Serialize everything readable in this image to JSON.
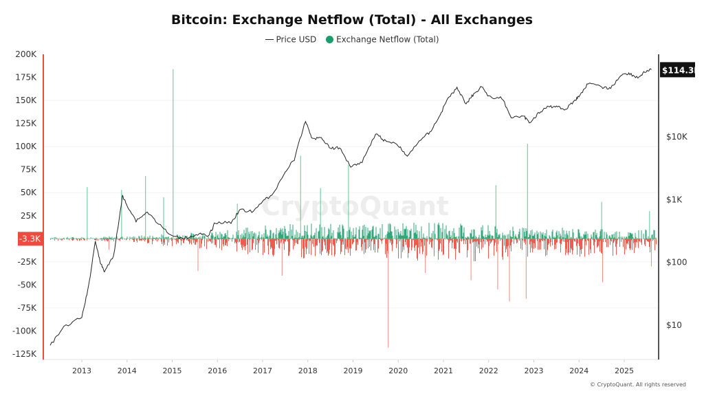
{
  "chart_data": {
    "type": "bar+line",
    "title": "Bitcoin: Exchange Netflow (Total) - All Exchanges",
    "legend": [
      {
        "name": "Price USD",
        "color": "#222222"
      },
      {
        "name": "Exchange Netflow (Total)",
        "color": "#1a9c6b"
      }
    ],
    "legend_placement": "top-center",
    "watermark": "CryptoQuant",
    "footer": "© CryptoQuant. All rights reserved",
    "colors": {
      "inflow": "#1a9c6b",
      "outflow": "#ee4b3c",
      "price": "#222222",
      "current_value_bg": "#ee4b3c"
    },
    "x_ticks": [
      "2013",
      "2014",
      "2015",
      "2016",
      "2017",
      "2018",
      "2019",
      "2020",
      "2021",
      "2022",
      "2023",
      "2024",
      "2025"
    ],
    "x_range": [
      2012.3,
      2025.7
    ],
    "left_axis": {
      "ticks": [
        "200K",
        "175K",
        "150K",
        "125K",
        "100K",
        "75K",
        "50K",
        "25K",
        "-25K",
        "-50K",
        "-75K",
        "-100K",
        "-125K"
      ],
      "range": [
        -125000,
        200000
      ],
      "current_label": "-3.3K"
    },
    "right_axis": {
      "scale": "log",
      "ticks": [
        "$10K",
        "$1K",
        "$100",
        "$10"
      ],
      "tick_values": [
        10000,
        1000,
        100,
        10
      ],
      "range": [
        3,
        250000
      ],
      "current_label": "$114.3K"
    },
    "price_series": [
      [
        2012.3,
        4.6
      ],
      [
        2012.6,
        9
      ],
      [
        2013.0,
        13
      ],
      [
        2013.15,
        40
      ],
      [
        2013.3,
        218
      ],
      [
        2013.4,
        100
      ],
      [
        2013.5,
        70
      ],
      [
        2013.7,
        120
      ],
      [
        2013.9,
        1100
      ],
      [
        2014.0,
        800
      ],
      [
        2014.2,
        450
      ],
      [
        2014.45,
        620
      ],
      [
        2014.7,
        400
      ],
      [
        2015.0,
        250
      ],
      [
        2015.3,
        240
      ],
      [
        2015.6,
        280
      ],
      [
        2015.8,
        250
      ],
      [
        2015.95,
        420
      ],
      [
        2016.3,
        420
      ],
      [
        2016.5,
        670
      ],
      [
        2016.8,
        620
      ],
      [
        2017.0,
        950
      ],
      [
        2017.2,
        1100
      ],
      [
        2017.5,
        2700
      ],
      [
        2017.7,
        4300
      ],
      [
        2017.95,
        17500
      ],
      [
        2018.1,
        9000
      ],
      [
        2018.3,
        9500
      ],
      [
        2018.5,
        6400
      ],
      [
        2018.7,
        6500
      ],
      [
        2018.95,
        3300
      ],
      [
        2019.2,
        3900
      ],
      [
        2019.5,
        11000
      ],
      [
        2019.7,
        8500
      ],
      [
        2020.0,
        7200
      ],
      [
        2020.2,
        4700
      ],
      [
        2020.5,
        9000
      ],
      [
        2020.7,
        11500
      ],
      [
        2020.9,
        20000
      ],
      [
        2021.1,
        40000
      ],
      [
        2021.3,
        58000
      ],
      [
        2021.5,
        33000
      ],
      [
        2021.65,
        45000
      ],
      [
        2021.85,
        63000
      ],
      [
        2022.0,
        42000
      ],
      [
        2022.3,
        40000
      ],
      [
        2022.5,
        20000
      ],
      [
        2022.8,
        20000
      ],
      [
        2022.9,
        16500
      ],
      [
        2023.1,
        23000
      ],
      [
        2023.3,
        29000
      ],
      [
        2023.5,
        30000
      ],
      [
        2023.7,
        26500
      ],
      [
        2023.9,
        37000
      ],
      [
        2024.0,
        43000
      ],
      [
        2024.2,
        70000
      ],
      [
        2024.5,
        60000
      ],
      [
        2024.7,
        58000
      ],
      [
        2024.95,
        97000
      ],
      [
        2025.1,
        100000
      ],
      [
        2025.3,
        85000
      ],
      [
        2025.45,
        105000
      ],
      [
        2025.6,
        114300
      ]
    ],
    "netflow_spikes": [
      [
        2013.12,
        56000
      ],
      [
        2013.6,
        -12000
      ],
      [
        2013.88,
        53000
      ],
      [
        2014.41,
        68000
      ],
      [
        2014.81,
        45000
      ],
      [
        2015.02,
        184000
      ],
      [
        2015.57,
        -35000
      ],
      [
        2016.44,
        38000
      ],
      [
        2017.43,
        -40000
      ],
      [
        2017.84,
        90000
      ],
      [
        2018.28,
        55000
      ],
      [
        2018.9,
        80000
      ],
      [
        2019.78,
        -118000
      ],
      [
        2020.6,
        -37000
      ],
      [
        2021.61,
        -45000
      ],
      [
        2022.16,
        58000
      ],
      [
        2022.2,
        -55000
      ],
      [
        2022.46,
        -68000
      ],
      [
        2022.83,
        -65000
      ],
      [
        2022.86,
        103000
      ],
      [
        2024.5,
        40000
      ],
      [
        2024.52,
        -47000
      ],
      [
        2025.56,
        30000
      ],
      [
        2025.6,
        -30000
      ]
    ],
    "netflow_typical_range": [
      [
        2012.3,
        2000,
        -2000
      ],
      [
        2014.0,
        3000,
        -3000
      ],
      [
        2015.0,
        6000,
        -9000
      ],
      [
        2016.0,
        8000,
        -12000
      ],
      [
        2017.0,
        15000,
        -20000
      ],
      [
        2018.0,
        18000,
        -22000
      ],
      [
        2019.0,
        15000,
        -20000
      ],
      [
        2020.0,
        18000,
        -25000
      ],
      [
        2021.0,
        18000,
        -25000
      ],
      [
        2022.0,
        15000,
        -25000
      ],
      [
        2023.0,
        12000,
        -20000
      ],
      [
        2024.0,
        12000,
        -20000
      ],
      [
        2025.7,
        10000,
        -18000
      ]
    ]
  }
}
